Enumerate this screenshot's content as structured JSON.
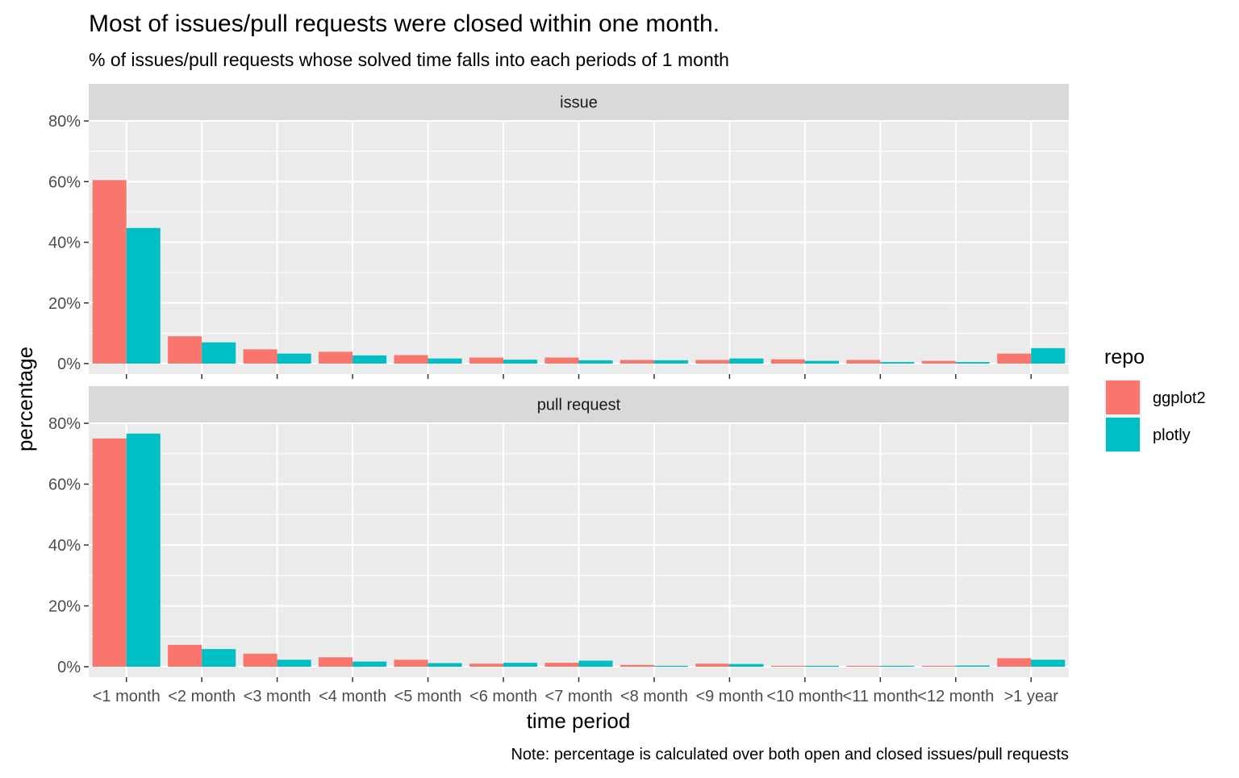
{
  "chart_data": {
    "type": "bar",
    "title": "Most of issues/pull requests were closed within one month.",
    "subtitle": "% of issues/pull requests whose solved time falls into each periods of 1 month",
    "xlabel": "time period",
    "ylabel": "percentage",
    "caption": "Note: percentage is calculated over both open and closed issues/pull requests",
    "categories": [
      "<1 month",
      "<2 month",
      "<3 month",
      "<4 month",
      "<5 month",
      "<6 month",
      "<7 month",
      "<8 month",
      "<9 month",
      "<10 month",
      "<11 month",
      "<12 month",
      ">1 year"
    ],
    "ylim": [
      0,
      90
    ],
    "yticks": [
      0,
      20,
      40,
      60,
      80
    ],
    "ytick_labels": [
      "0%",
      "20%",
      "40%",
      "60%",
      "80%"
    ],
    "legend": {
      "title": "repo",
      "position": "right",
      "entries": [
        {
          "name": "ggplot2",
          "color": "#F8766D"
        },
        {
          "name": "plotly",
          "color": "#00BFC4"
        }
      ]
    },
    "panels": [
      {
        "strip": "issue",
        "series": [
          {
            "name": "ggplot2",
            "color": "#F8766D",
            "values": [
              60.5,
              9.0,
              4.7,
              3.9,
              2.8,
              2.0,
              2.0,
              1.2,
              1.2,
              1.4,
              1.2,
              0.9,
              3.3
            ]
          },
          {
            "name": "plotly",
            "color": "#00BFC4",
            "values": [
              44.7,
              7.0,
              3.3,
              2.7,
              1.7,
              1.3,
              1.1,
              1.1,
              1.7,
              0.9,
              0.5,
              0.5,
              5.1
            ]
          }
        ]
      },
      {
        "strip": "pull request",
        "series": [
          {
            "name": "ggplot2",
            "color": "#F8766D",
            "values": [
              75.0,
              7.2,
              4.3,
              3.1,
              2.3,
              1.0,
              1.3,
              0.6,
              1.0,
              0.3,
              0.3,
              0.3,
              2.8
            ]
          },
          {
            "name": "plotly",
            "color": "#00BFC4",
            "values": [
              76.6,
              5.8,
              2.3,
              1.7,
              1.2,
              1.3,
              2.0,
              0.3,
              0.9,
              0.3,
              0.3,
              0.4,
              2.3
            ]
          }
        ]
      }
    ]
  }
}
